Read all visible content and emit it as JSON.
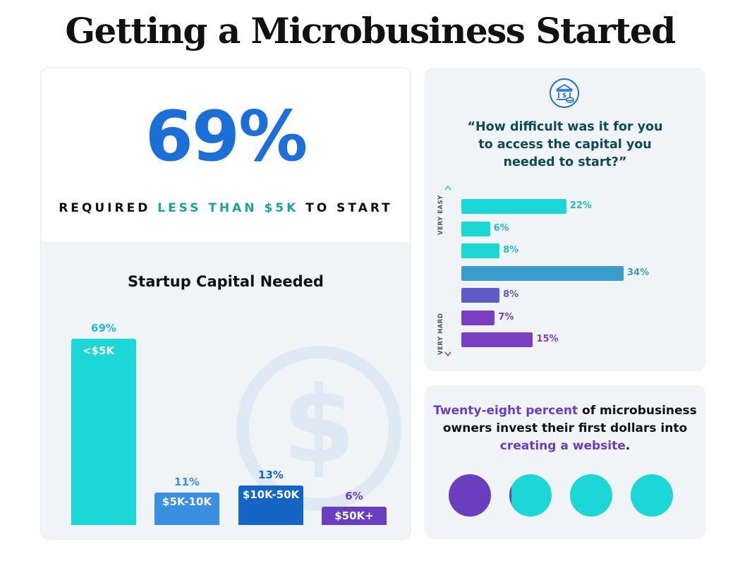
{
  "title": "Getting a Microbusiness Started",
  "headline": {
    "value": "69%",
    "prefix": "REQUIRED",
    "highlight": "LESS THAN $5K",
    "suffix": "TO START"
  },
  "colors": {
    "blue": "#1b6fd6",
    "teal": "#1dd6d6",
    "teal_text": "#1aa4a0",
    "mid_blue": "#3a8fe0",
    "deep_blue": "#1565c4",
    "purple": "#6b3dbf",
    "steel_blue": "#3a9ccc",
    "violet": "#5e5cc6",
    "dark_teal": "#0e4a5a"
  },
  "icons": {
    "bank": "bank-coin-icon",
    "dollar": "dollar-coin-icon"
  },
  "chart_data": [
    {
      "type": "bar",
      "title": "Startup Capital Needed",
      "categories": [
        "<$5K",
        "$5K-10K",
        "$10K-50K",
        "$50K+"
      ],
      "values": [
        69,
        11,
        13,
        6
      ],
      "value_labels": [
        "69%",
        "11%",
        "13%",
        "6%"
      ],
      "unit": "%",
      "ylim": [
        0,
        69
      ],
      "colors": [
        "#1dd6d6",
        "#3a8fe0",
        "#1565c4",
        "#6b3dbf"
      ],
      "label_colors": [
        "#1dbfcf",
        "#3a8fe0",
        "#1565c4",
        "#6b3dbf"
      ]
    },
    {
      "type": "bar",
      "orientation": "horizontal",
      "title": "“How difficult was it for you to access the capital you needed to start?”",
      "title_lines": [
        "“How difficult was it for you",
        "to access the capital you",
        "needed to start?”"
      ],
      "axis_top_label": "VERY EASY",
      "axis_bottom_label": "VERY HARD",
      "values": [
        22,
        6,
        8,
        34,
        8,
        7,
        15
      ],
      "value_labels": [
        "22%",
        "6%",
        "8%",
        "34%",
        "8%",
        "7%",
        "15%"
      ],
      "unit": "%",
      "xlim": [
        0,
        34
      ],
      "colors": [
        "#1dd6d6",
        "#1dd6d6",
        "#1dd6d6",
        "#3a9ccc",
        "#5e5cc6",
        "#7b3fc4",
        "#7b3fc4"
      ],
      "label_colors": [
        "#1dbfcf",
        "#1dbfcf",
        "#1dbfcf",
        "#3a9ccc",
        "#5e5cc6",
        "#7b3fc4",
        "#7b3fc4"
      ]
    },
    {
      "type": "pie",
      "title": "",
      "value": 28,
      "unit": "%",
      "colors": [
        "#6b3dbf",
        "#1dd6d6"
      ]
    }
  ],
  "stat": {
    "highlight_start": "Twenty-eight percent",
    "middle": "of microbusiness owners invest their first dollars into",
    "highlight_end": "creating a website",
    "end": "."
  }
}
